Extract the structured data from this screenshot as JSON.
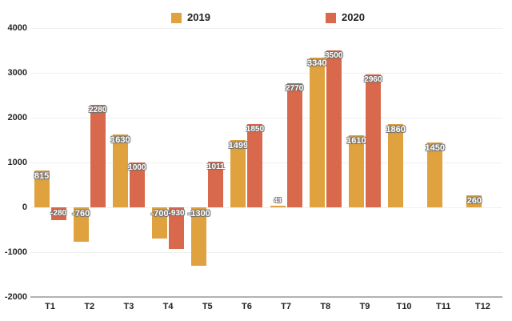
{
  "chart_data": {
    "type": "bar",
    "title": "",
    "xlabel": "",
    "ylabel": "",
    "categories": [
      "T1",
      "T2",
      "T3",
      "T4",
      "T5",
      "T6",
      "T7",
      "T8",
      "T9",
      "T10",
      "T11",
      "T12"
    ],
    "series": [
      {
        "name": "2019",
        "color": "#DFA23E",
        "values": [
          815,
          -760,
          1630,
          -700,
          -1300,
          1499,
          43,
          3340,
          1610,
          1860,
          1450,
          260
        ]
      },
      {
        "name": "2020",
        "color": "#D8694C",
        "values": [
          -280,
          2280,
          1000,
          -930,
          1011,
          1850,
          2770,
          3500,
          2960,
          null,
          null,
          null
        ]
      }
    ],
    "ylim": [
      -2000,
      4000
    ],
    "ytick_step": 1000,
    "ytick_labels": [
      "4000",
      "3000",
      "2000",
      "1000",
      "0",
      "-1000",
      "-2000"
    ],
    "grid": true,
    "legend_position": "top",
    "background_color": "#ffffff",
    "gridline_color": "#efefef",
    "axis_line_color": "#b2b2b2",
    "data_label_color": "#ffffff"
  }
}
